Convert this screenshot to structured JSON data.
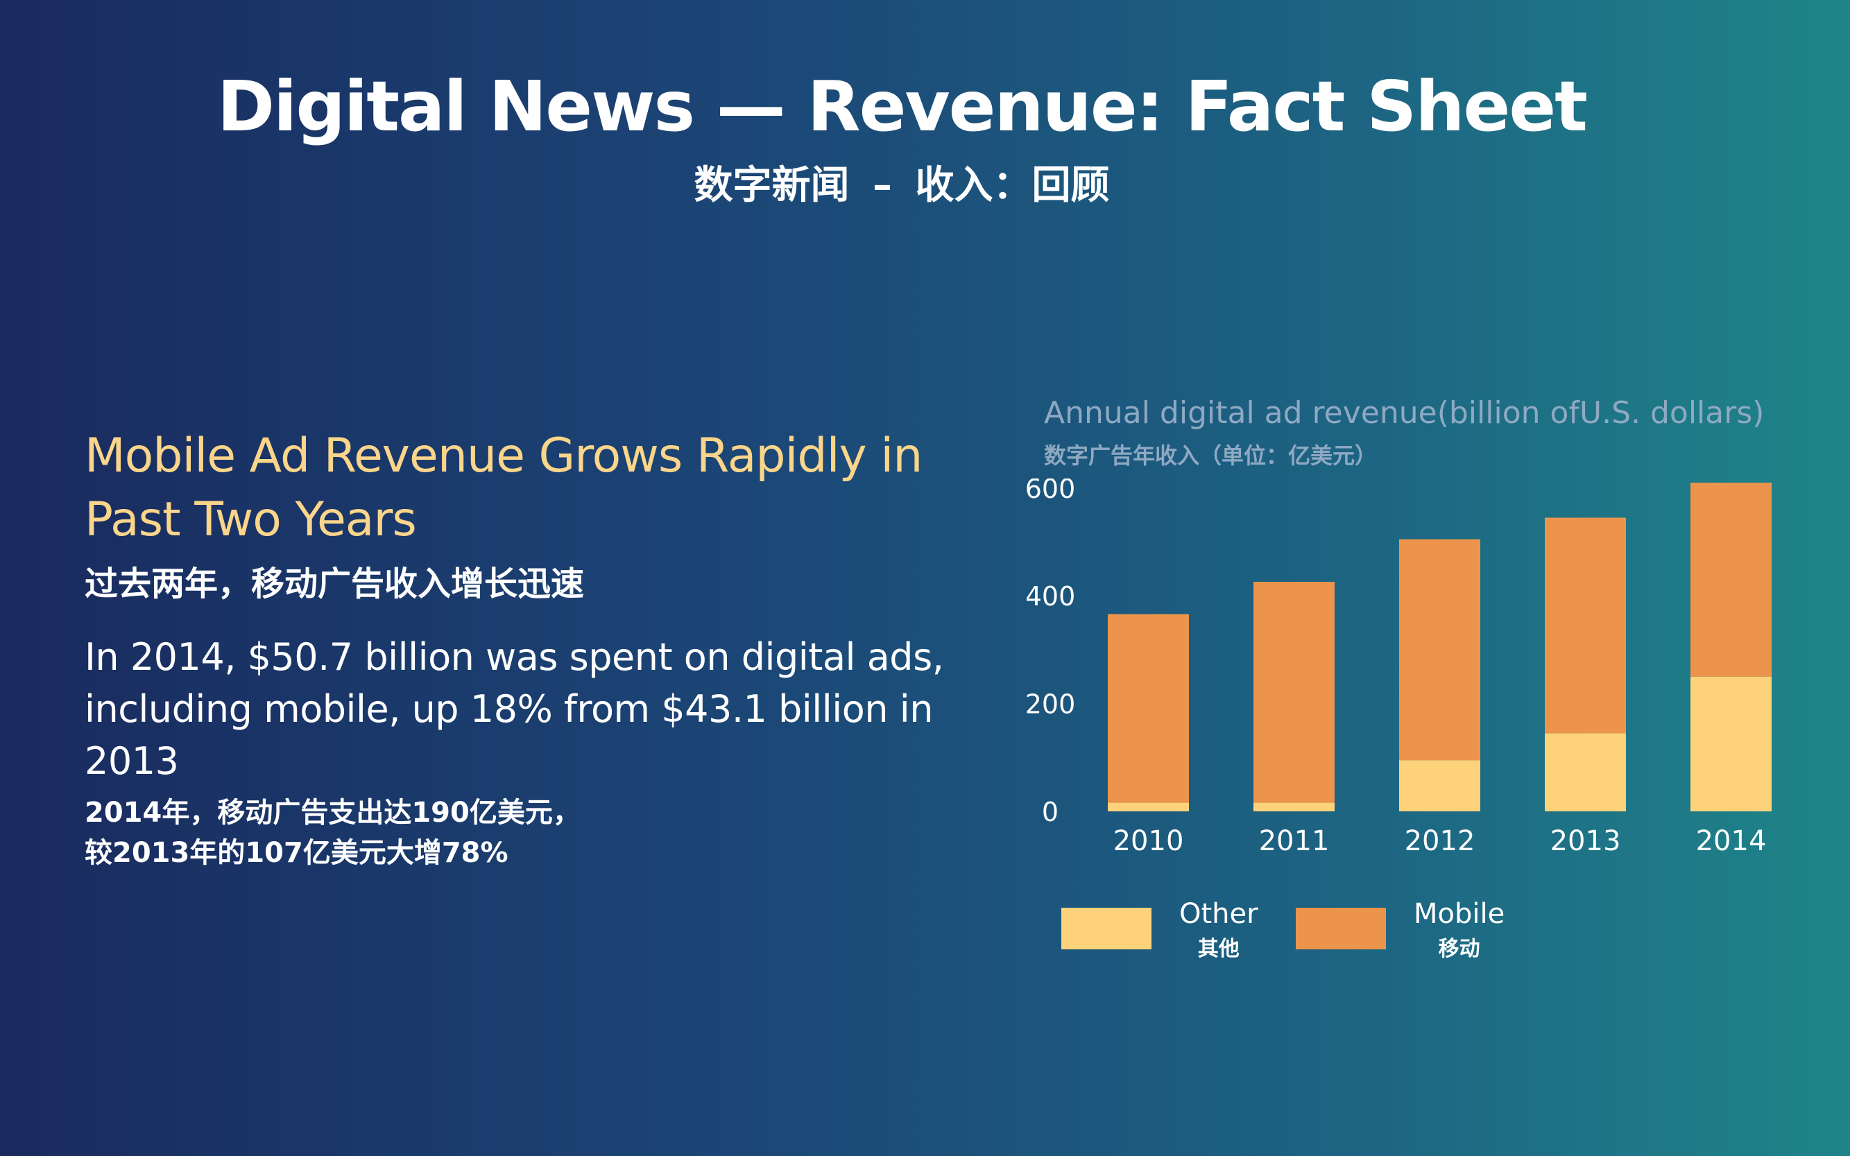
{
  "header": {
    "title": "Digital News — Revenue: Fact Sheet",
    "subtitle": "数字新闻 – 收入：回顾"
  },
  "left": {
    "headline": "Mobile Ad Revenue Grows Rapidly in Past Two Years",
    "headline_cn": "过去两年，移动广告收入增长迅速",
    "body": "In 2014, $50.7 billion was spent on digital ads, including mobile, up 18% from $43.1 billion in 2013",
    "body_cn_line1": "2014年，移动广告支出达190亿美元，",
    "body_cn_line2": "较2013年的107亿美元大增78%"
  },
  "colors": {
    "other": "#fdd27a",
    "mobile": "#ec944c",
    "headline": "#fbd58a",
    "chart_title": "#8fa9c3"
  },
  "chart_data": {
    "type": "bar",
    "stacked": true,
    "title": "Annual digital ad revenue(billion ofU.S. dollars)",
    "title_cn": "数字广告年收入（单位：亿美元）",
    "categories": [
      "2010",
      "2011",
      "2012",
      "2013",
      "2014"
    ],
    "series": [
      {
        "name": "Other",
        "name_cn": "其他",
        "values": [
          16,
          16,
          95,
          145,
          250
        ]
      },
      {
        "name": "Mobile",
        "name_cn": "移动",
        "values": [
          350,
          410,
          410,
          400,
          360
        ]
      }
    ],
    "yticks": [
      "0",
      "200",
      "400",
      "600"
    ],
    "ylim": [
      0,
      610
    ],
    "grid": false,
    "legend_position": "bottom-left"
  }
}
